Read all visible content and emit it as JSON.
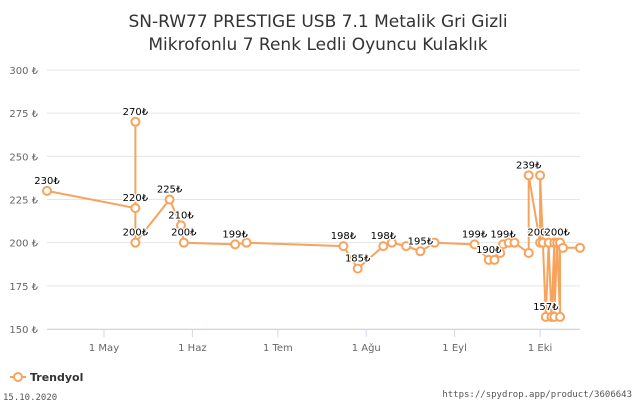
{
  "chart_data": {
    "type": "line",
    "title_line1": "SN-RW77 PRESTIGE USB 7.1 Metalik Gri Gizli",
    "title_line2": "Mikrofonlu 7 Renk Ledli Oyuncu Kulaklık",
    "xlabel": "",
    "ylabel": "",
    "ylim": [
      150,
      300
    ],
    "y_ticks": [
      {
        "value": 150,
        "label": "150 ₺"
      },
      {
        "value": 175,
        "label": "175 ₺"
      },
      {
        "value": 200,
        "label": "200 ₺"
      },
      {
        "value": 225,
        "label": "225 ₺"
      },
      {
        "value": 250,
        "label": "250 ₺"
      },
      {
        "value": 275,
        "label": "275 ₺"
      },
      {
        "value": 300,
        "label": "300 ₺"
      }
    ],
    "x_range": [
      "2020-04-11",
      "2020-10-15"
    ],
    "x_ticks": [
      {
        "date": "2020-05-01",
        "label": "1 May"
      },
      {
        "date": "2020-06-01",
        "label": "1 Haz"
      },
      {
        "date": "2020-07-01",
        "label": "1 Tem"
      },
      {
        "date": "2020-08-01",
        "label": "1 Ağu"
      },
      {
        "date": "2020-09-01",
        "label": "1 Eyl"
      },
      {
        "date": "2020-10-01",
        "label": "1 Eki"
      }
    ],
    "grid": true,
    "legend_position": "bottom-left",
    "series": [
      {
        "name": "Trendyol",
        "color": "#f7a35c",
        "points": [
          {
            "x": "2020-04-11",
            "y": 230,
            "label": "230₺"
          },
          {
            "x": "2020-05-12",
            "y": 220,
            "label": "220₺"
          },
          {
            "x": "2020-05-12",
            "y": 270,
            "label": "270₺"
          },
          {
            "x": "2020-05-12",
            "y": 200,
            "label": "200₺"
          },
          {
            "x": "2020-05-24",
            "y": 225,
            "label": "225₺"
          },
          {
            "x": "2020-05-28",
            "y": 210,
            "label": "210₺"
          },
          {
            "x": "2020-05-29",
            "y": 200,
            "label": "200₺"
          },
          {
            "x": "2020-06-16",
            "y": 199,
            "label": "199₺"
          },
          {
            "x": "2020-06-20",
            "y": 200,
            "label": ""
          },
          {
            "x": "2020-07-24",
            "y": 198,
            "label": "198₺"
          },
          {
            "x": "2020-07-29",
            "y": 185,
            "label": "185₺"
          },
          {
            "x": "2020-08-07",
            "y": 198,
            "label": "198₺"
          },
          {
            "x": "2020-08-10",
            "y": 200,
            "label": ""
          },
          {
            "x": "2020-08-15",
            "y": 198,
            "label": ""
          },
          {
            "x": "2020-08-20",
            "y": 195,
            "label": "195₺"
          },
          {
            "x": "2020-08-25",
            "y": 200,
            "label": ""
          },
          {
            "x": "2020-09-08",
            "y": 199,
            "label": "199₺"
          },
          {
            "x": "2020-09-13",
            "y": 190,
            "label": "190₺"
          },
          {
            "x": "2020-09-15",
            "y": 190,
            "label": ""
          },
          {
            "x": "2020-09-17",
            "y": 194,
            "label": ""
          },
          {
            "x": "2020-09-18",
            "y": 199,
            "label": "199₺"
          },
          {
            "x": "2020-09-20",
            "y": 200,
            "label": ""
          },
          {
            "x": "2020-09-22",
            "y": 200,
            "label": ""
          },
          {
            "x": "2020-09-27",
            "y": 194,
            "label": ""
          },
          {
            "x": "2020-09-27",
            "y": 239,
            "label": "239₺"
          },
          {
            "x": "2020-10-01",
            "y": 200,
            "label": "200₺"
          },
          {
            "x": "2020-10-01",
            "y": 239,
            "label": ""
          },
          {
            "x": "2020-10-02",
            "y": 200,
            "label": ""
          },
          {
            "x": "2020-10-03",
            "y": 157,
            "label": "157₺"
          },
          {
            "x": "2020-10-04",
            "y": 200,
            "label": ""
          },
          {
            "x": "2020-10-05",
            "y": 157,
            "label": ""
          },
          {
            "x": "2020-10-06",
            "y": 200,
            "label": ""
          },
          {
            "x": "2020-10-06",
            "y": 157,
            "label": ""
          },
          {
            "x": "2020-10-07",
            "y": 200,
            "label": "200₺"
          },
          {
            "x": "2020-10-08",
            "y": 157,
            "label": ""
          },
          {
            "x": "2020-10-08",
            "y": 200,
            "label": ""
          },
          {
            "x": "2020-10-09",
            "y": 197,
            "label": ""
          },
          {
            "x": "2020-10-15",
            "y": 197,
            "label": ""
          }
        ]
      }
    ]
  },
  "footer": {
    "date": "15.10.2020",
    "url": "https://spydrop.app/product/3606643"
  }
}
